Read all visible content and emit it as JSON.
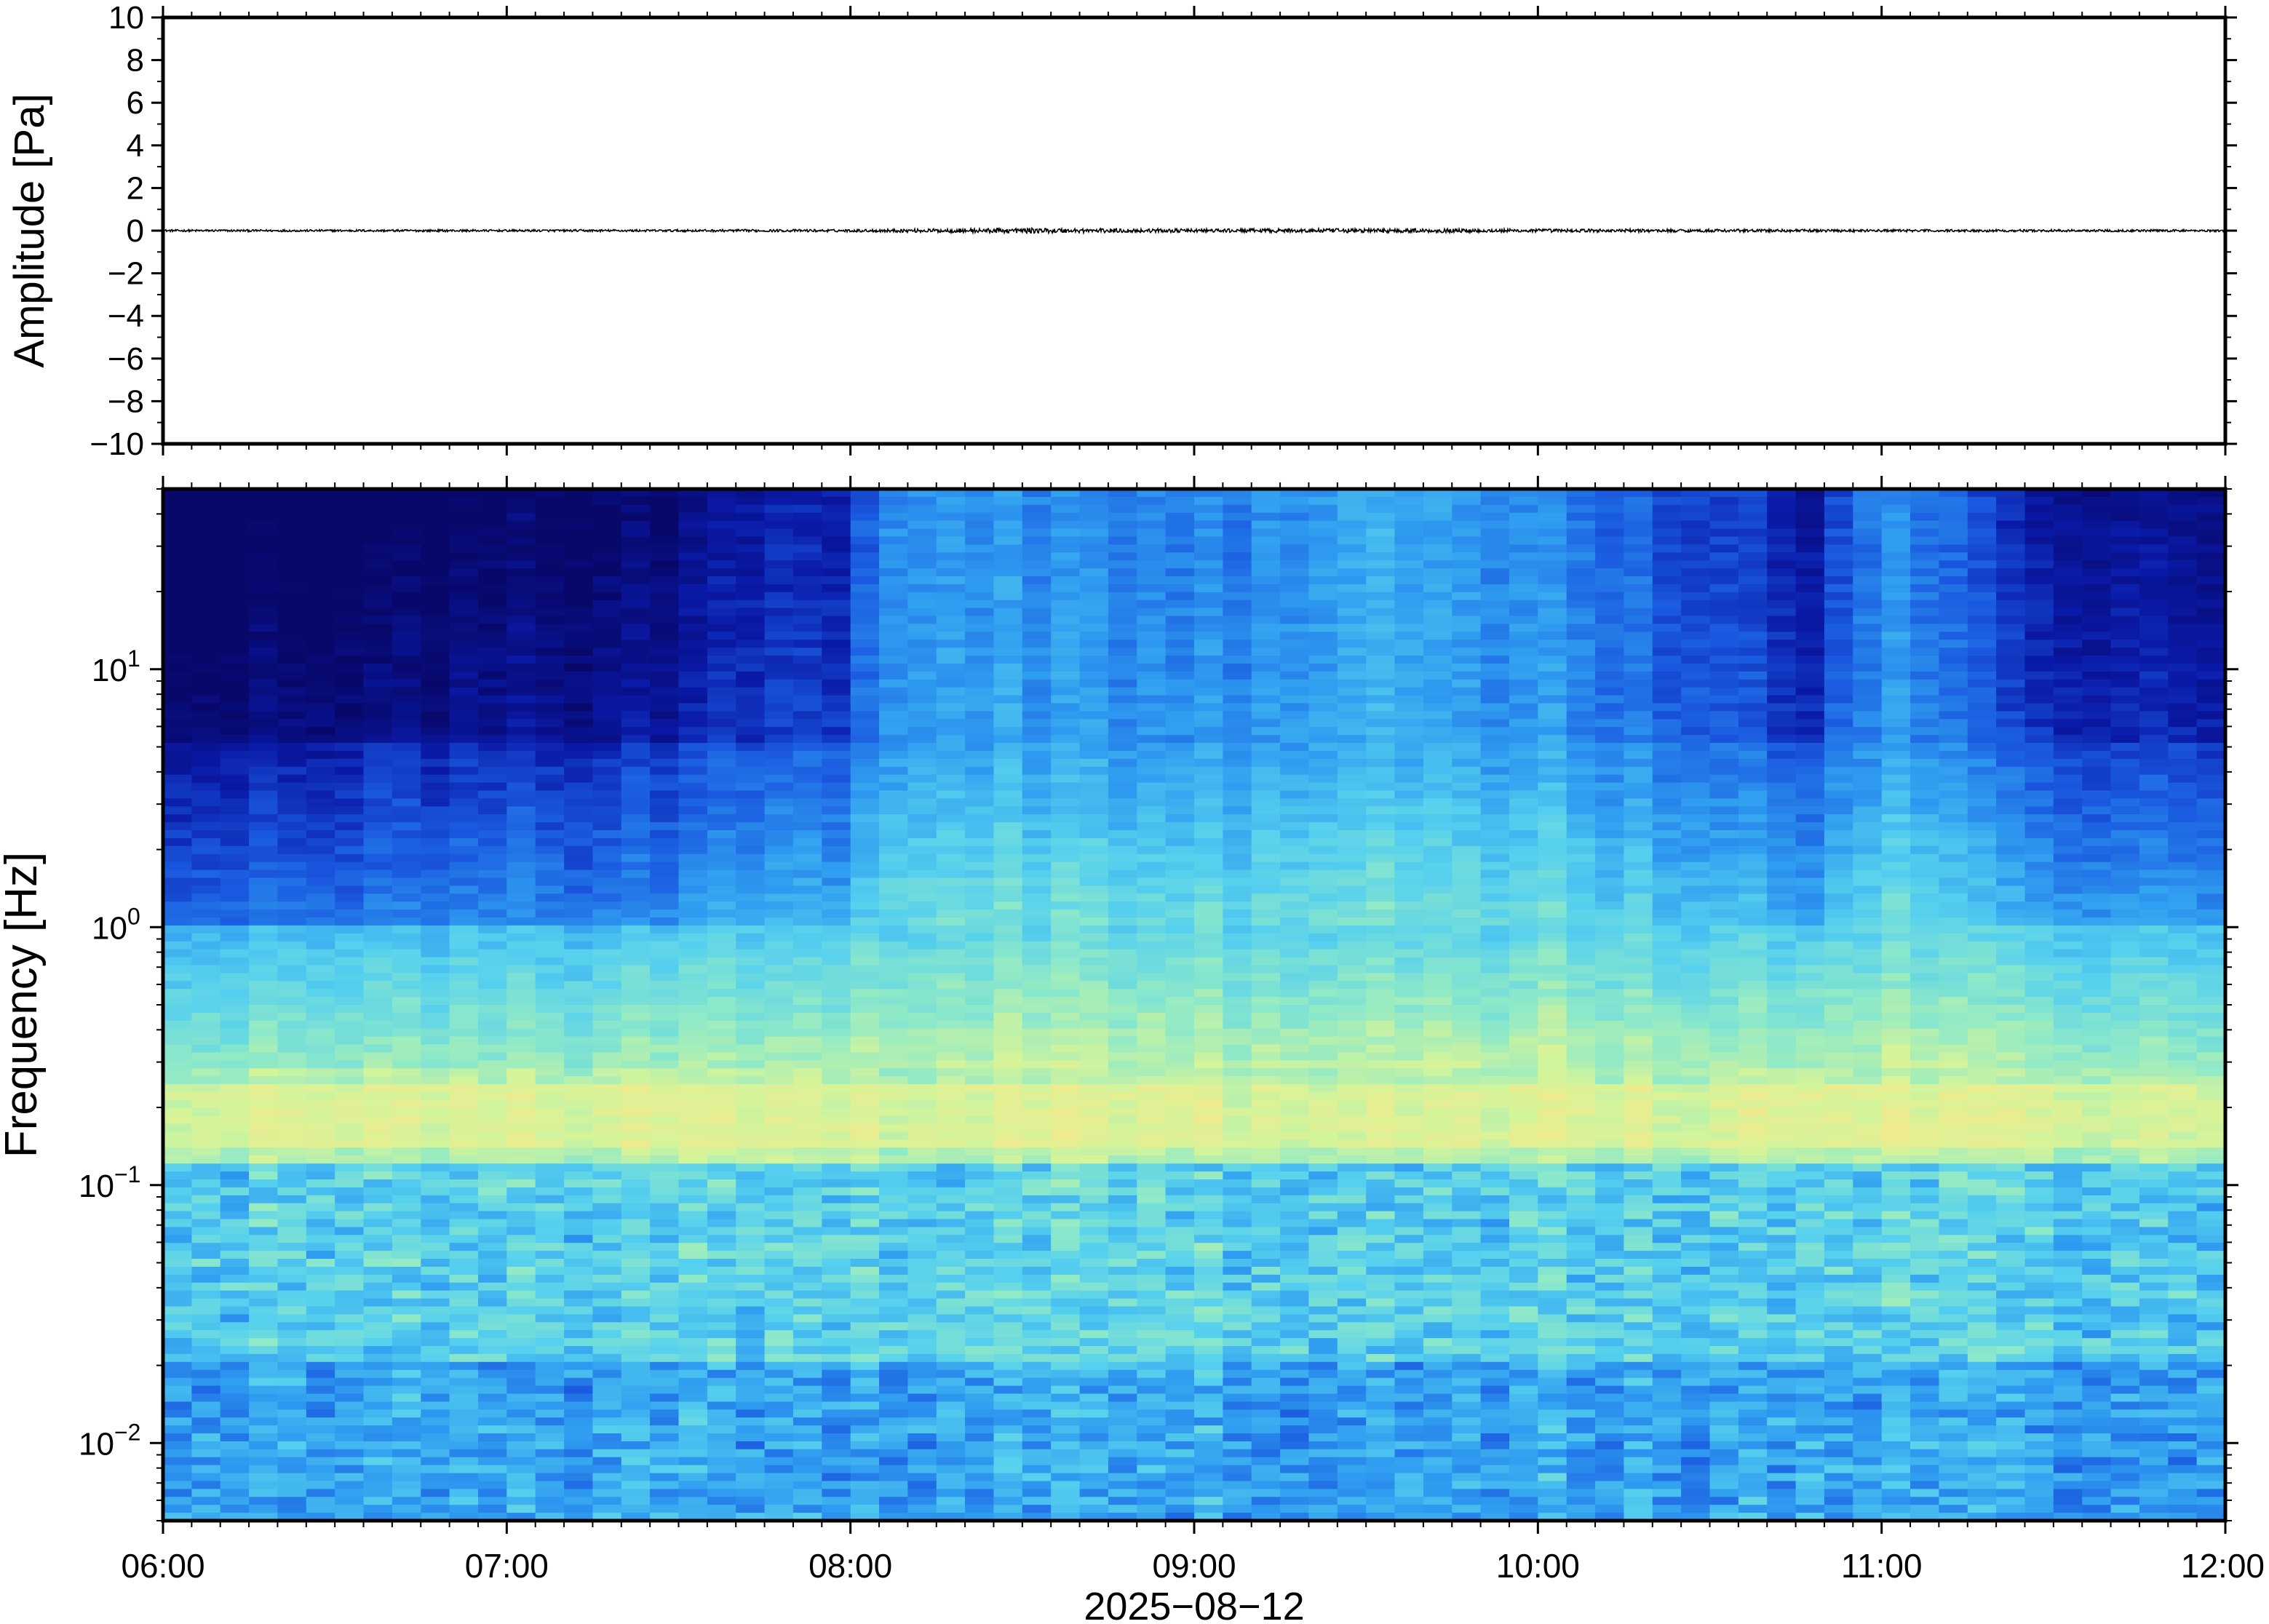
{
  "chart_data": [
    {
      "type": "line",
      "name_hint": "waveform",
      "ylabel": "Amplitude [Pa]",
      "ylim": [
        -10,
        10
      ],
      "yticks": [
        10,
        8,
        6,
        4,
        2,
        0,
        -2,
        -4,
        -6,
        -8,
        -10
      ],
      "ytick_labels": [
        "10",
        "8",
        "6",
        "4",
        "2",
        "0",
        "−2",
        "−4",
        "−6",
        "−8",
        "−10"
      ],
      "xlim": [
        "2025-08-12 06:00",
        "2025-08-12 12:00"
      ],
      "series": [
        {
          "color": "#000000",
          "baseline": 0,
          "envelope_hours": [
            6.0,
            7.0,
            8.0,
            8.5,
            9.0,
            9.5,
            10.0,
            11.0,
            12.0
          ],
          "envelope_pa": [
            0.05,
            0.05,
            0.06,
            0.12,
            0.08,
            0.1,
            0.08,
            0.06,
            0.05
          ]
        }
      ]
    },
    {
      "type": "heatmap",
      "ylabel": "Frequency [Hz]",
      "yscale": "log",
      "ylim": [
        0.005,
        50
      ],
      "yticks": [
        0.01,
        0.1,
        1,
        10
      ],
      "ytick_labels": [
        {
          "base": "10",
          "exp": "−2"
        },
        {
          "base": "10",
          "exp": "−1"
        },
        {
          "base": "10",
          "exp": "0"
        },
        {
          "base": "10",
          "exp": "1"
        }
      ],
      "xticks": [
        "06:00",
        "07:00",
        "08:00",
        "09:00",
        "10:00",
        "11:00",
        "12:00"
      ],
      "xlabel": "2025−08−12",
      "xlim": [
        "2025-08-12 06:00",
        "2025-08-12 12:00"
      ],
      "colormap": [
        "#08086b",
        "#0a1aa8",
        "#1a5ae0",
        "#2f9cf0",
        "#56d0ee",
        "#8ee9c8",
        "#d4f49a",
        "#f6e88a",
        "#f7b66a"
      ],
      "activity_hours": [
        6.0,
        6.5,
        7.0,
        7.5,
        7.67,
        8.0,
        8.13,
        8.5,
        9.0,
        9.5,
        10.0,
        10.5,
        10.8,
        10.9,
        11.0,
        11.2,
        11.4,
        12.0
      ],
      "activity_level": [
        0.05,
        0.05,
        0.15,
        0.15,
        0.35,
        0.4,
        0.85,
        0.75,
        0.7,
        0.9,
        0.75,
        0.55,
        0.3,
        0.6,
        0.75,
        0.6,
        0.35,
        0.3
      ]
    }
  ]
}
